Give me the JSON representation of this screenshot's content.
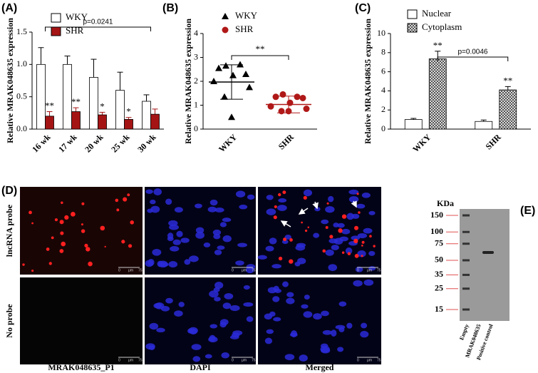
{
  "chart_data": [
    {
      "type": "bar",
      "panel": "(A)",
      "ylabel": "Relative MRAK048635 expression",
      "categories": [
        "16 wk",
        "17 wk",
        "20 wk",
        "25 wk",
        "30 wk"
      ],
      "series": [
        {
          "name": "WKY",
          "color": "#ffffff",
          "values": [
            1.0,
            1.0,
            0.8,
            0.6,
            0.43
          ],
          "errors": [
            0.26,
            0.13,
            0.28,
            0.28,
            0.1
          ]
        },
        {
          "name": "SHR",
          "color": "#a51414",
          "values": [
            0.2,
            0.27,
            0.22,
            0.15,
            0.23
          ],
          "errors": [
            0.07,
            0.06,
            0.04,
            0.03,
            0.08
          ],
          "annotations": [
            "**",
            "**",
            "*",
            "*",
            null
          ]
        }
      ],
      "ylim": [
        0,
        1.5
      ],
      "yticks": [
        {
          "value": 0,
          "label": "0.0"
        },
        {
          "value": 0.5,
          "label": "0.5"
        },
        {
          "value": 1,
          "label": "1.0"
        },
        {
          "value": 1.5,
          "label": "1.5"
        }
      ],
      "bracket": "p=0.0241"
    },
    {
      "type": "scatter",
      "panel": "(B)",
      "ylabel": "Relative MRAK048635 expression",
      "categories": [
        "WKY",
        "SHR"
      ],
      "series": [
        {
          "name": "WKY",
          "color": "#000000",
          "marker": "triangle",
          "values": [
            2.65,
            2.7,
            2.55,
            2.3,
            2.25,
            2.0,
            1.75,
            1.35,
            0.5
          ],
          "mean": 1.97,
          "sd": 0.72
        },
        {
          "name": "SHR",
          "color": "#b01818",
          "marker": "circle",
          "values": [
            1.45,
            1.35,
            1.35,
            1.3,
            1.1,
            0.95,
            0.85,
            0.75,
            0.75
          ],
          "mean": 1.03,
          "sd": 0.35
        }
      ],
      "ylim": [
        0,
        4
      ],
      "yticks": [
        0,
        1,
        2,
        3,
        4
      ],
      "bracket": "**"
    },
    {
      "type": "bar",
      "panel": "(C)",
      "ylabel": "Relative MRAK048635 expression",
      "categories": [
        "WKY",
        "SHR"
      ],
      "series": [
        {
          "name": "Nuclear",
          "color": "#ffffff",
          "values": [
            1.0,
            0.8
          ],
          "errors": [
            0.12,
            0.15
          ]
        },
        {
          "name": "Cytoplasm",
          "color": "#ffffff",
          "hatch": true,
          "values": [
            7.35,
            4.1
          ],
          "errors": [
            0.8,
            0.35
          ],
          "annotations": [
            "**",
            "**"
          ]
        }
      ],
      "ylim": [
        0,
        10
      ],
      "yticks": [
        0,
        2,
        4,
        6,
        8,
        10
      ],
      "bracket": "p=0.0046"
    }
  ],
  "panel_d": {
    "label": "(D)",
    "rows": [
      "lncRNA probe",
      "No probe"
    ],
    "columns": [
      "MRAK048635_P1",
      "DAPI",
      "Merged"
    ],
    "scale_bar": [
      "0",
      "μm",
      "75"
    ]
  },
  "panel_e": {
    "label": "(E)",
    "unit": "KDa",
    "ladder": [
      150,
      100,
      75,
      50,
      35,
      25,
      15
    ],
    "lanes": [
      "Empty",
      "MRAK048635",
      "Positive control"
    ]
  }
}
